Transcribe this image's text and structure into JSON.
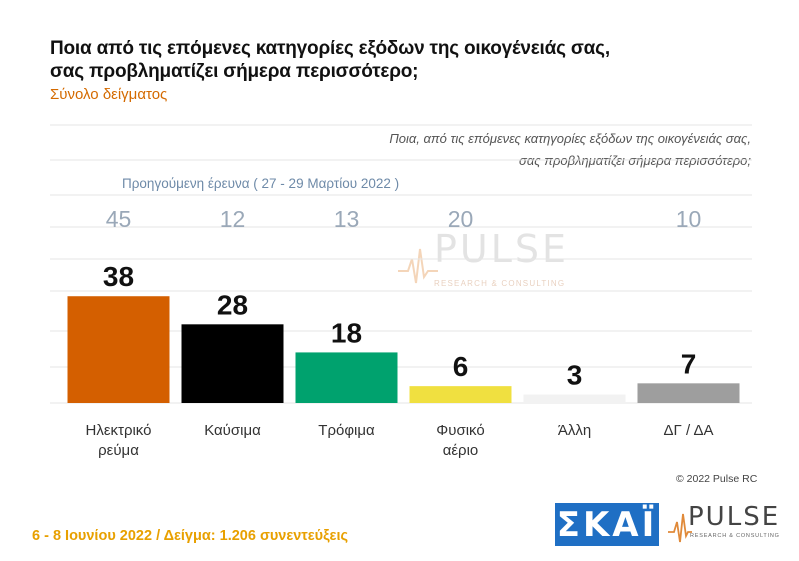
{
  "header": {
    "title_line1": "Ποια από τις επόμενες κατηγορίες εξόδων της οικογένειάς σας,",
    "title_line2": "σας προβληματίζει σήμερα περισσότερο;",
    "subtitle": "Σύνολο δείγματος"
  },
  "question": {
    "line1": "Ποια, από τις επόμενες κατηγορίες εξόδων της οικογένειάς σας,",
    "line2": "σας προβληματίζει σήμερα περισσότερο;"
  },
  "previous_survey_label": "Προηγούμενη έρευνα  ( 27 - 29 Μαρτίου  2022 )",
  "copyright": "© 2022 Pulse RC",
  "footer": "6 - 8  Ιουνίου  2022  /  Δείγμα:  1.206 συνεντεύξεις",
  "logos": {
    "skai": "ΣΚΑΪ",
    "pulse": "PULSE",
    "pulse_sub": "RESEARCH & CONSULTING"
  },
  "watermark": {
    "word": "PULSE",
    "sub": "RESEARCH & CONSULTING"
  },
  "chart_data": {
    "type": "bar",
    "categories": [
      [
        "Ηλεκτρικό",
        "ρεύμα"
      ],
      [
        "Καύσιμα"
      ],
      [
        "Τρόφιμα"
      ],
      [
        "Φυσικό",
        "αέριο"
      ],
      [
        "Άλλη"
      ],
      [
        "ΔΓ / ΔΑ"
      ]
    ],
    "values": [
      38,
      28,
      18,
      6,
      3,
      7
    ],
    "previous_values": [
      45,
      12,
      13,
      20,
      null,
      10
    ],
    "colors": [
      "#d45f00",
      "#000000",
      "#00a26e",
      "#f0e040",
      "#f2f2f2",
      "#9e9e9e"
    ],
    "ylim": [
      0,
      45
    ],
    "grid": true
  }
}
